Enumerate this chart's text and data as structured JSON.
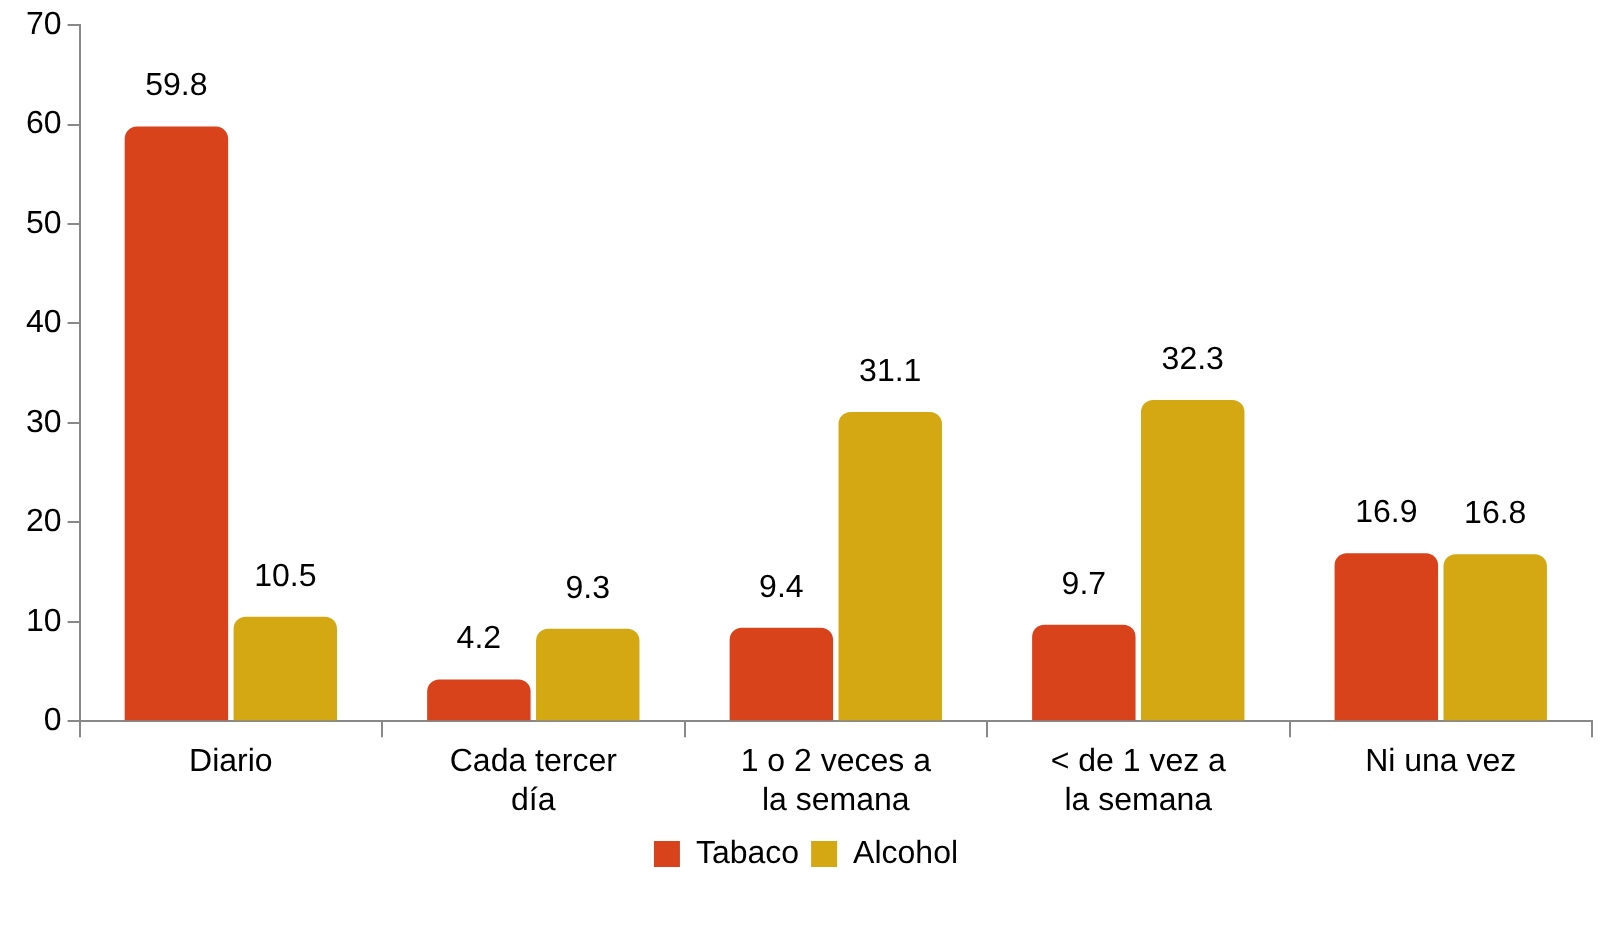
{
  "chart_data": {
    "type": "bar",
    "categories": [
      "Diario",
      "Cada tercer día",
      "1 o 2 veces a la semana",
      "< de 1 vez a la semana",
      "Ni una vez"
    ],
    "series": [
      {
        "name": "Tabaco",
        "color": "#d8431c",
        "values": [
          59.8,
          4.2,
          9.4,
          9.7,
          16.9
        ]
      },
      {
        "name": "Alcohol",
        "color": "#d4a812",
        "values": [
          10.5,
          9.3,
          31.1,
          32.3,
          16.8
        ]
      }
    ],
    "ylim": [
      0,
      70
    ],
    "yticks": [
      0,
      10,
      20,
      30,
      40,
      50,
      60,
      70
    ],
    "grid": false,
    "legend": "bottom",
    "data_labels": true
  }
}
